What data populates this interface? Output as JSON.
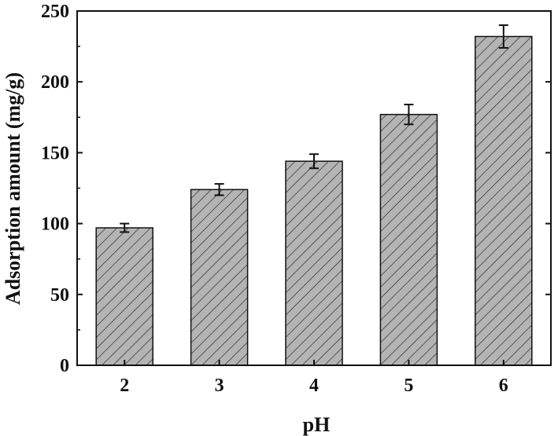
{
  "chart_data": {
    "type": "bar",
    "title": "",
    "xlabel": "pH",
    "ylabel": "Adsorption amount (mg/g)",
    "categories": [
      "2",
      "3",
      "4",
      "5",
      "6"
    ],
    "values": [
      97,
      124,
      144,
      177,
      232
    ],
    "errors": [
      3,
      4,
      5,
      7,
      8
    ],
    "ylim": [
      0,
      250
    ],
    "yticks": [
      "0",
      "50",
      "100",
      "150",
      "200",
      "250"
    ],
    "bar_fill": "#b4b4b4",
    "bar_pattern": "diagonal-hatch",
    "grid": false,
    "legend": "none"
  }
}
